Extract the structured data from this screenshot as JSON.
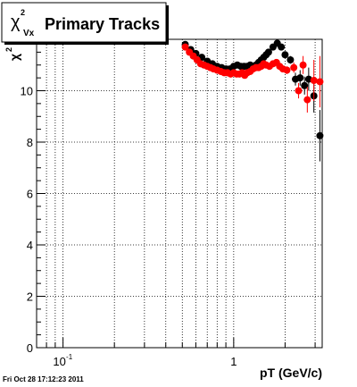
{
  "chart_data": {
    "type": "scatter",
    "title": "Primary Tracks",
    "ylabel_symbol": "χ",
    "ylabel_sup": "2",
    "ylabel_sub": "Vx",
    "xlabel": "pT (GeV/c)",
    "xscale": "log",
    "xlim": [
      0.07,
      3.3
    ],
    "ylim": [
      0,
      12
    ],
    "xticks": [
      {
        "value": 0.1,
        "label_base": "10",
        "label_exp": "-1"
      },
      {
        "value": 1,
        "label_base": "1",
        "label_exp": ""
      }
    ],
    "yticks": [
      {
        "value": 0,
        "label": "0"
      },
      {
        "value": 2,
        "label": "2"
      },
      {
        "value": 4,
        "label": "4"
      },
      {
        "value": 6,
        "label": "6"
      },
      {
        "value": 8,
        "label": "8"
      },
      {
        "value": 10,
        "label": "10"
      }
    ],
    "grid": true,
    "legend": "none",
    "series": [
      {
        "color": "#000000",
        "points": [
          {
            "x": 0.52,
            "y": 11.8,
            "err": 0.05
          },
          {
            "x": 0.56,
            "y": 11.6,
            "err": 0.05
          },
          {
            "x": 0.6,
            "y": 11.45,
            "err": 0.05
          },
          {
            "x": 0.65,
            "y": 11.3,
            "err": 0.05
          },
          {
            "x": 0.7,
            "y": 11.15,
            "err": 0.05
          },
          {
            "x": 0.75,
            "y": 11.05,
            "err": 0.05
          },
          {
            "x": 0.8,
            "y": 10.95,
            "err": 0.05
          },
          {
            "x": 0.85,
            "y": 10.9,
            "err": 0.05
          },
          {
            "x": 0.9,
            "y": 10.85,
            "err": 0.05
          },
          {
            "x": 0.95,
            "y": 10.85,
            "err": 0.05
          },
          {
            "x": 1.0,
            "y": 10.95,
            "err": 0.05
          },
          {
            "x": 1.05,
            "y": 11.0,
            "err": 0.05
          },
          {
            "x": 1.1,
            "y": 10.95,
            "err": 0.05
          },
          {
            "x": 1.15,
            "y": 10.95,
            "err": 0.05
          },
          {
            "x": 1.2,
            "y": 10.95,
            "err": 0.05
          },
          {
            "x": 1.25,
            "y": 11.0,
            "err": 0.05
          },
          {
            "x": 1.3,
            "y": 10.95,
            "err": 0.05
          },
          {
            "x": 1.35,
            "y": 11.0,
            "err": 0.05
          },
          {
            "x": 1.4,
            "y": 11.1,
            "err": 0.05
          },
          {
            "x": 1.45,
            "y": 11.2,
            "err": 0.05
          },
          {
            "x": 1.5,
            "y": 11.3,
            "err": 0.05
          },
          {
            "x": 1.55,
            "y": 11.4,
            "err": 0.06
          },
          {
            "x": 1.6,
            "y": 11.5,
            "err": 0.06
          },
          {
            "x": 1.7,
            "y": 11.7,
            "err": 0.06
          },
          {
            "x": 1.8,
            "y": 11.85,
            "err": 0.07
          },
          {
            "x": 1.9,
            "y": 11.7,
            "err": 0.08
          },
          {
            "x": 2.0,
            "y": 11.4,
            "err": 0.1
          },
          {
            "x": 2.15,
            "y": 11.2,
            "err": 0.15
          },
          {
            "x": 2.3,
            "y": 10.45,
            "err": 0.25
          },
          {
            "x": 2.45,
            "y": 10.5,
            "err": 0.3
          },
          {
            "x": 2.6,
            "y": 10.2,
            "err": 0.35
          },
          {
            "x": 2.75,
            "y": 10.45,
            "err": 0.45
          },
          {
            "x": 2.95,
            "y": 9.8,
            "err": 0.65
          },
          {
            "x": 3.2,
            "y": 8.25,
            "err": 1.0
          }
        ]
      },
      {
        "color": "#ff0000",
        "points": [
          {
            "x": 0.52,
            "y": 11.7,
            "err": 0.05
          },
          {
            "x": 0.55,
            "y": 11.5,
            "err": 0.05
          },
          {
            "x": 0.58,
            "y": 11.35,
            "err": 0.05
          },
          {
            "x": 0.61,
            "y": 11.2,
            "err": 0.05
          },
          {
            "x": 0.64,
            "y": 11.05,
            "err": 0.05
          },
          {
            "x": 0.67,
            "y": 11.0,
            "err": 0.05
          },
          {
            "x": 0.7,
            "y": 10.95,
            "err": 0.05
          },
          {
            "x": 0.73,
            "y": 10.9,
            "err": 0.05
          },
          {
            "x": 0.76,
            "y": 10.85,
            "err": 0.05
          },
          {
            "x": 0.8,
            "y": 10.8,
            "err": 0.05
          },
          {
            "x": 0.84,
            "y": 10.75,
            "err": 0.05
          },
          {
            "x": 0.88,
            "y": 10.7,
            "err": 0.05
          },
          {
            "x": 0.92,
            "y": 10.7,
            "err": 0.05
          },
          {
            "x": 0.96,
            "y": 10.65,
            "err": 0.05
          },
          {
            "x": 1.0,
            "y": 10.7,
            "err": 0.05
          },
          {
            "x": 1.04,
            "y": 10.65,
            "err": 0.05
          },
          {
            "x": 1.08,
            "y": 10.65,
            "err": 0.05
          },
          {
            "x": 1.12,
            "y": 10.7,
            "err": 0.05
          },
          {
            "x": 1.16,
            "y": 10.6,
            "err": 0.05
          },
          {
            "x": 1.2,
            "y": 10.7,
            "err": 0.05
          },
          {
            "x": 1.25,
            "y": 10.75,
            "err": 0.05
          },
          {
            "x": 1.3,
            "y": 10.85,
            "err": 0.05
          },
          {
            "x": 1.35,
            "y": 10.9,
            "err": 0.05
          },
          {
            "x": 1.4,
            "y": 10.9,
            "err": 0.05
          },
          {
            "x": 1.45,
            "y": 10.95,
            "err": 0.05
          },
          {
            "x": 1.5,
            "y": 11.05,
            "err": 0.06
          },
          {
            "x": 1.55,
            "y": 11.0,
            "err": 0.06
          },
          {
            "x": 1.62,
            "y": 10.95,
            "err": 0.06
          },
          {
            "x": 1.7,
            "y": 11.05,
            "err": 0.07
          },
          {
            "x": 1.78,
            "y": 11.1,
            "err": 0.07
          },
          {
            "x": 1.86,
            "y": 10.95,
            "err": 0.08
          },
          {
            "x": 1.94,
            "y": 10.85,
            "err": 0.1
          },
          {
            "x": 2.05,
            "y": 10.8,
            "err": 0.15
          },
          {
            "x": 2.25,
            "y": 10.9,
            "err": 0.2
          },
          {
            "x": 2.4,
            "y": 10.0,
            "err": 0.3
          },
          {
            "x": 2.55,
            "y": 11.0,
            "err": 0.35
          },
          {
            "x": 2.7,
            "y": 9.65,
            "err": 0.5
          },
          {
            "x": 2.95,
            "y": 10.4,
            "err": 0.8
          },
          {
            "x": 3.2,
            "y": 10.35,
            "err": 1.0
          }
        ]
      }
    ]
  },
  "footer": "Fri Oct 28 17:12:23 2011"
}
